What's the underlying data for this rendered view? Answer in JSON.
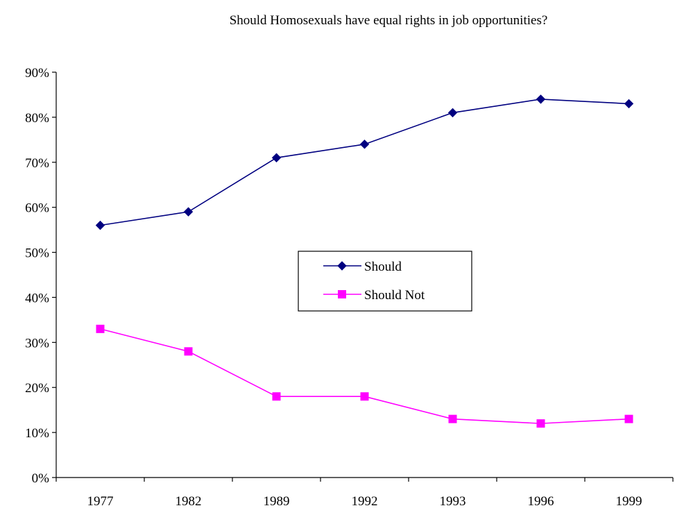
{
  "chart_data": {
    "type": "line",
    "title": "Should Homosexuals have equal rights in job opportunities?",
    "xlabel": "",
    "ylabel": "",
    "categories": [
      "1977",
      "1982",
      "1989",
      "1992",
      "1993",
      "1996",
      "1999"
    ],
    "ylim": [
      0,
      90
    ],
    "yticks": [
      0,
      10,
      20,
      30,
      40,
      50,
      60,
      70,
      80,
      90
    ],
    "ytick_format": "percent",
    "grid": false,
    "legend_position": "center",
    "series": [
      {
        "name": "Should",
        "values": [
          56,
          59,
          71,
          74,
          81,
          84,
          83
        ],
        "color": "#000080",
        "marker": "diamond"
      },
      {
        "name": "Should Not",
        "values": [
          33,
          28,
          18,
          18,
          13,
          12,
          13
        ],
        "color": "#ff00ff",
        "marker": "square"
      }
    ]
  }
}
